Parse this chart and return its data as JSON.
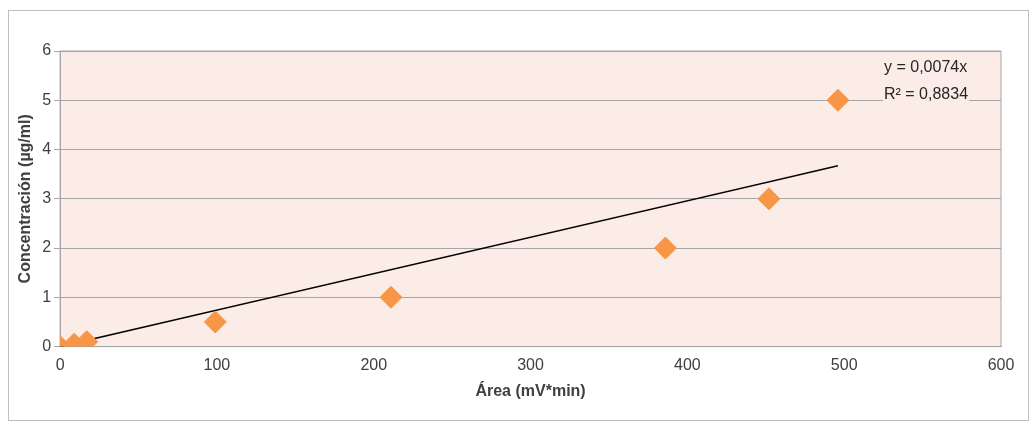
{
  "chart_data": {
    "type": "scatter",
    "xlabel": "Área (mV*min)",
    "ylabel": "Concentración (µg/ml)",
    "series": [
      {
        "color": "#f79646",
        "x": [
          0,
          9,
          17,
          99,
          211,
          386,
          452,
          496
        ],
        "values": [
          0,
          0.05,
          0.1,
          0.5,
          1,
          2,
          3,
          5
        ]
      },
      {
        "type": "line",
        "color": "#000000",
        "x": [
          0,
          496
        ],
        "values": [
          0,
          3.67
        ],
        "marker": "none"
      }
    ],
    "annotations": [
      "y = 0,0074x",
      "R² = 0,8834"
    ],
    "xlim": [
      0,
      600
    ],
    "xticks": [
      0,
      100,
      200,
      300,
      400,
      500,
      600
    ],
    "ylim": [
      0,
      6
    ],
    "yticks": [
      0,
      1,
      2,
      3,
      4,
      5,
      6
    ],
    "grid": "y",
    "marker": "diamond",
    "legend": false
  }
}
